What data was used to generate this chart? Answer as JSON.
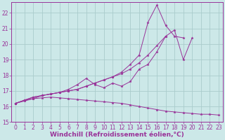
{
  "background_color": "#cce8e8",
  "grid_color": "#aacccc",
  "line_color": "#993399",
  "xlabel": "Windchill (Refroidissement éolien,°C)",
  "xlabel_fontsize": 6.5,
  "tick_fontsize": 5.5,
  "xlim": [
    -0.5,
    23.5
  ],
  "ylim": [
    15,
    22.7
  ],
  "yticks": [
    15,
    16,
    17,
    18,
    19,
    20,
    21,
    22
  ],
  "xticks": [
    0,
    1,
    2,
    3,
    4,
    5,
    6,
    7,
    8,
    9,
    10,
    11,
    12,
    13,
    14,
    15,
    16,
    17,
    18,
    19,
    20,
    21,
    22,
    23
  ],
  "series": [
    {
      "x": [
        0,
        1,
        2,
        3,
        4,
        5,
        6,
        7,
        8,
        9,
        10,
        11,
        12,
        13,
        14,
        15,
        16,
        17,
        18,
        19,
        20,
        21,
        22,
        23
      ],
      "y": [
        16.2,
        16.4,
        16.5,
        16.7,
        16.8,
        16.9,
        17.0,
        17.1,
        17.3,
        17.5,
        17.7,
        17.9,
        18.1,
        18.4,
        18.8,
        19.3,
        19.9,
        20.5,
        20.9,
        19.0,
        20.4,
        null,
        null,
        null
      ]
    },
    {
      "x": [
        0,
        1,
        2,
        3,
        4,
        5,
        6,
        7,
        8,
        9,
        10,
        11,
        12,
        13,
        14,
        15,
        16,
        17,
        18,
        19
      ],
      "y": [
        16.2,
        16.4,
        16.6,
        16.7,
        16.8,
        16.9,
        17.0,
        17.1,
        17.3,
        17.5,
        17.7,
        17.9,
        18.2,
        18.7,
        19.3,
        21.4,
        22.5,
        21.2,
        20.5,
        20.4
      ]
    },
    {
      "x": [
        0,
        1,
        2,
        3,
        4,
        5,
        6,
        7,
        8,
        9,
        10,
        11,
        12,
        13,
        14,
        15,
        16,
        17,
        18,
        19
      ],
      "y": [
        16.2,
        16.4,
        16.6,
        16.7,
        16.8,
        16.9,
        17.1,
        17.4,
        17.8,
        17.4,
        17.2,
        17.5,
        17.3,
        17.6,
        18.4,
        18.7,
        19.5,
        20.5,
        null,
        null
      ]
    },
    {
      "x": [
        0,
        1,
        2,
        3,
        4,
        5,
        6,
        7,
        8,
        9,
        10,
        11,
        12,
        13,
        14,
        15,
        16,
        17,
        18,
        19,
        20,
        21,
        22,
        23
      ],
      "y": [
        16.2,
        16.35,
        16.5,
        16.55,
        16.6,
        16.55,
        16.5,
        16.45,
        16.4,
        16.35,
        16.3,
        16.25,
        16.2,
        16.1,
        16.0,
        15.9,
        15.8,
        15.7,
        15.65,
        15.6,
        15.55,
        15.5,
        15.5,
        15.45
      ]
    }
  ],
  "series2": [
    {
      "x": [
        0,
        20
      ],
      "y": [
        16.2,
        20.4
      ]
    }
  ]
}
